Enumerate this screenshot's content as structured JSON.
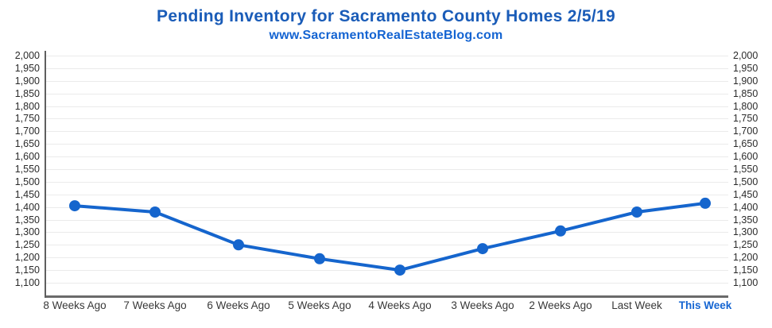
{
  "chart_data": {
    "type": "line",
    "title": "Pending Inventory for Sacramento County Homes 2/5/19",
    "subtitle": "www.SacramentoRealEstateBlog.com",
    "series": [
      {
        "name": "Pending Inventory",
        "values": [
          1405,
          1380,
          1250,
          1195,
          1150,
          1235,
          1305,
          1380,
          1415
        ]
      }
    ],
    "categories": [
      "8 Weeks Ago",
      "7 Weeks Ago",
      "6 Weeks Ago",
      "5 Weeks Ago",
      "4 Weeks Ago",
      "3 Weeks Ago",
      "2 Weeks Ago",
      "Last Week",
      "This Week"
    ],
    "x_axis": {
      "highlight_category": "This Week"
    },
    "y_axis": {
      "min": 1100,
      "max": 2000,
      "step": 50,
      "dual_sided": true,
      "tick_labels_desc": [
        "2,000",
        "1,950",
        "1,900",
        "1,850",
        "1,800",
        "1,750",
        "1,700",
        "1,650",
        "1,600",
        "1,550",
        "1,500",
        "1,450",
        "1,400",
        "1,350",
        "1,300",
        "1,250",
        "1,200",
        "1,150",
        "1,100"
      ]
    },
    "grid": true,
    "legend": "none",
    "colors": {
      "title": "#1A5CB8",
      "subtitle": "#1464D2",
      "line": "#1565CD",
      "point": "#1565CD",
      "gridline": "#EBEBEB",
      "axis_line": "#5F5F5F",
      "baseline": "#6A6A6A",
      "y_label": "#2B2B2B",
      "x_label": "#383838",
      "x_label_highlight": "#1565D2",
      "background": "#FFFFFF"
    }
  }
}
